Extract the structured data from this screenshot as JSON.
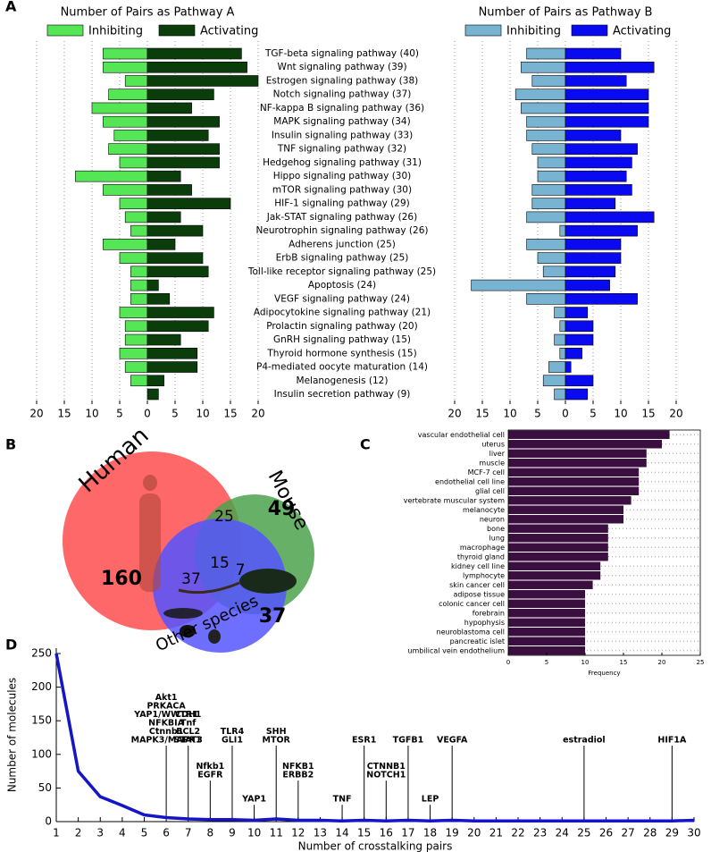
{
  "chart_data": [
    {
      "type": "bar",
      "panel": "A",
      "title": "Number of Pairs as Pathway A",
      "categories": [
        "TGF-beta signaling pathway (40)",
        "Wnt signaling pathway (39)",
        "Estrogen signaling pathway (38)",
        "Notch signaling pathway (37)",
        "NF-kappa B signaling pathway (36)",
        "MAPK signaling pathway (34)",
        "Insulin signaling pathway (33)",
        "TNF signaling pathway (32)",
        "Hedgehog signaling pathway (31)",
        "Hippo signaling pathway (30)",
        "mTOR signaling pathway (30)",
        "HIF-1 signaling pathway (29)",
        "Jak-STAT signaling pathway (26)",
        "Neurotrophin signaling pathway (26)",
        "Adherens junction (25)",
        "ErbB signaling pathway (25)",
        "Toll-like receptor signaling pathway (25)",
        "Apoptosis (24)",
        "VEGF signaling pathway (24)",
        "Adipocytokine signaling pathway (21)",
        "Prolactin signaling pathway (20)",
        "GnRH signaling pathway (15)",
        "Thyroid hormone synthesis (15)",
        "P4-mediated oocyte maturation (14)",
        "Melanogenesis (12)",
        "Insulin secretion pathway (9)"
      ],
      "series": [
        {
          "name": "Inhibiting",
          "color": "#55e655",
          "values": [
            -8,
            -8,
            -4,
            -7,
            -10,
            -8,
            -6,
            -7,
            -5,
            -13,
            -8,
            -5,
            -4,
            -3,
            -8,
            -5,
            -3,
            -3,
            -3,
            -5,
            -4,
            -4,
            -5,
            -4,
            -3,
            0
          ]
        },
        {
          "name": "Activating",
          "color": "#0b3d0b",
          "values": [
            17,
            18,
            20,
            12,
            8,
            13,
            11,
            13,
            13,
            6,
            8,
            15,
            6,
            10,
            5,
            10,
            11,
            2,
            4,
            12,
            11,
            6,
            9,
            9,
            3,
            2
          ]
        }
      ],
      "xlim": [
        -20,
        20
      ],
      "xticks": [
        {
          "value": -20,
          "label": "20"
        },
        {
          "value": -15,
          "label": "15"
        },
        {
          "value": -10,
          "label": "10"
        },
        {
          "value": -5,
          "label": "5"
        },
        0,
        5,
        10,
        15,
        20
      ],
      "grid": true
    },
    {
      "type": "bar",
      "title": "Number of Pairs as Pathway B",
      "series": [
        {
          "name": "Inhibiting",
          "color": "#78b4d2",
          "values": [
            -7,
            -8,
            -6,
            -9,
            -8,
            -7,
            -7,
            -6,
            -5,
            -5,
            -6,
            -6,
            -7,
            -1,
            -7,
            -5,
            -4,
            -17,
            -7,
            -2,
            -1,
            -2,
            -1,
            -3,
            -4,
            -2
          ]
        },
        {
          "name": "Activating",
          "color": "#0a0af0",
          "values": [
            10,
            16,
            11,
            15,
            15,
            15,
            10,
            13,
            12,
            11,
            12,
            9,
            16,
            13,
            10,
            10,
            9,
            8,
            13,
            4,
            5,
            5,
            3,
            1,
            5,
            4
          ]
        }
      ],
      "xlim": [
        -20,
        20
      ],
      "xticks": [
        {
          "value": -20,
          "label": "20"
        },
        {
          "value": -15,
          "label": "15"
        },
        {
          "value": -10,
          "label": "10"
        },
        {
          "value": -5,
          "label": "5"
        },
        0,
        5,
        10,
        15,
        20
      ],
      "grid": true
    },
    {
      "type": "venn",
      "panel": "B",
      "sets": [
        {
          "name": "Human",
          "color": "#ff4d4d"
        },
        {
          "name": "Mouse",
          "color": "#4ca24c"
        },
        {
          "name": "Other species",
          "color": "#5555ff"
        }
      ],
      "values": [
        160,
        49,
        37,
        25,
        37,
        7,
        15
      ]
    },
    {
      "type": "barh",
      "panel": "C",
      "xlabel": "Frequency",
      "color": "#3a0f3f",
      "categories": [
        "vascular endothelial cell",
        "uterus",
        "liver",
        "muscle",
        "MCF-7 cell",
        "endothelial cell line",
        "glial cell",
        "vertebrate muscular system",
        "melanocyte",
        "neuron",
        "bone",
        "lung",
        "macrophage",
        "thyroid gland",
        "kidney cell line",
        "lymphocyte",
        "skin cancer cell",
        "adipose tissue",
        "colonic cancer cell",
        "forebrain",
        "hypophysis",
        "neuroblastoma cell",
        "pancreatic islet",
        "umbilical vein endothelium"
      ],
      "values": [
        21,
        20,
        18,
        18,
        17,
        17,
        17,
        16,
        15,
        15,
        13,
        13,
        13,
        13,
        12,
        12,
        11,
        10,
        10,
        10,
        10,
        10,
        10,
        10
      ],
      "xlim": [
        0,
        25
      ],
      "xticks": [
        0,
        5,
        10,
        15,
        20,
        25
      ],
      "grid": true
    },
    {
      "type": "line",
      "panel": "D",
      "xlabel": "Number of crosstalking pairs",
      "ylabel": "Number of molecules",
      "color": "#1515c8",
      "x": [
        1,
        2,
        3,
        4,
        5,
        6,
        7,
        8,
        9,
        10,
        11,
        12,
        13,
        14,
        15,
        16,
        17,
        18,
        19,
        20,
        21,
        22,
        23,
        24,
        25,
        26,
        27,
        28,
        29,
        30
      ],
      "values": [
        250,
        75,
        37,
        24,
        10,
        6,
        4,
        3,
        3,
        2,
        4,
        2,
        2,
        1,
        2,
        1,
        2,
        1,
        2,
        1,
        1,
        1,
        1,
        1,
        1,
        1,
        1,
        1,
        1,
        2
      ],
      "xlim": [
        1,
        30
      ],
      "ylim": [
        0,
        258
      ],
      "xticks": [
        1,
        2,
        3,
        4,
        5,
        6,
        7,
        8,
        9,
        10,
        11,
        12,
        13,
        14,
        15,
        16,
        17,
        18,
        19,
        20,
        21,
        22,
        23,
        24,
        25,
        26,
        27,
        28,
        29,
        30
      ],
      "yticks": [
        0,
        50,
        100,
        150,
        200,
        250
      ],
      "annotations": [
        {
          "x": 6,
          "y": 113,
          "labels": [
            "Akt1",
            "PRKACA",
            "YAP1/WWTR1",
            "NFKBIA",
            "Ctnnb1",
            "MAPK3/MAPK1"
          ]
        },
        {
          "x": 7,
          "y": 113,
          "labels": [
            "CDH1",
            "Tnf",
            "BCL2",
            "STAT3"
          ]
        },
        {
          "x": 8,
          "y": 61,
          "labels": [
            "Nfkb1",
            "EGFR"
          ]
        },
        {
          "x": 9,
          "y": 113,
          "labels": [
            "TLR4",
            "GLI1"
          ]
        },
        {
          "x": 10,
          "y": 25,
          "labels": [
            "YAP1"
          ]
        },
        {
          "x": 11,
          "y": 113,
          "labels": [
            "SHH",
            "MTOR"
          ]
        },
        {
          "x": 12,
          "y": 61,
          "labels": [
            "NFKB1",
            "ERBB2"
          ]
        },
        {
          "x": 14,
          "y": 25,
          "labels": [
            "TNF"
          ]
        },
        {
          "x": 15,
          "y": 113,
          "labels": [
            "ESR1"
          ]
        },
        {
          "x": 16,
          "y": 61,
          "labels": [
            "CTNNB1",
            "NOTCH1"
          ]
        },
        {
          "x": 17,
          "y": 113,
          "labels": [
            "TGFB1"
          ]
        },
        {
          "x": 18,
          "y": 25,
          "labels": [
            "LEP"
          ]
        },
        {
          "x": 19,
          "y": 113,
          "labels": [
            "VEGFA"
          ]
        },
        {
          "x": 25,
          "y": 113,
          "labels": [
            "estradiol"
          ]
        },
        {
          "x": 29,
          "y": 113,
          "labels": [
            "HIF1A"
          ]
        }
      ]
    }
  ]
}
